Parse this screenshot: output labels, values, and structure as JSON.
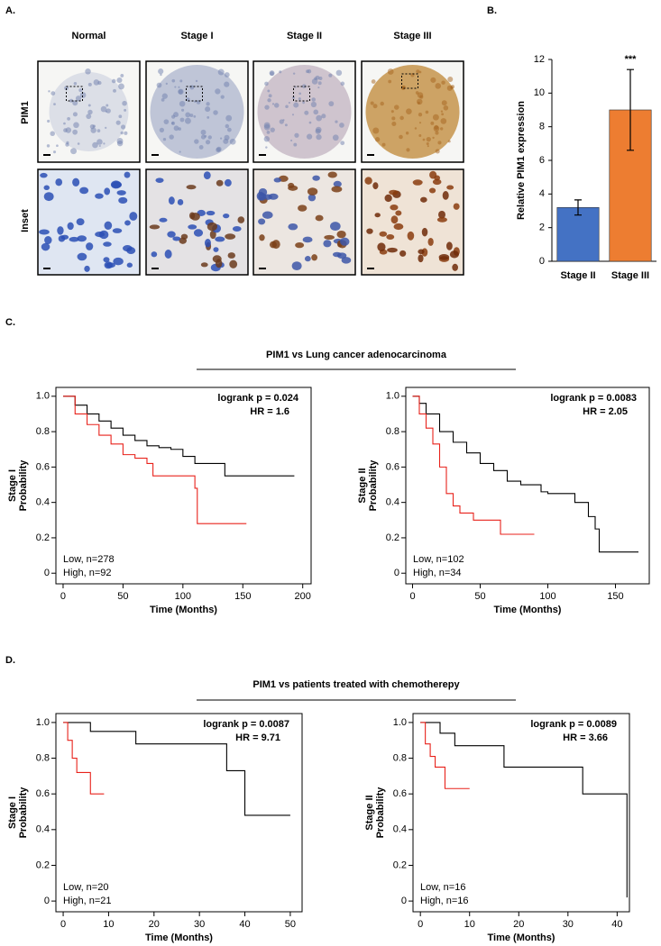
{
  "panel_a": {
    "label": "A.",
    "columns": [
      "Normal",
      "Stage I",
      "Stage II",
      "Stage III"
    ],
    "rows": [
      "PIM1",
      "Inset"
    ]
  },
  "group_titles": [
    "PIM1 vs Lung cancer adenocarcinoma",
    "PIM1 vs patients treated with chemotherepy"
  ],
  "group_labels": [
    "C.",
    "D."
  ],
  "chart_data": [
    {
      "type": "bar",
      "panel": "B.",
      "ylabel": "Relative PIM1 expression",
      "categories": [
        "Stage II",
        "Stage III"
      ],
      "values": [
        3.2,
        9.0
      ],
      "errors": [
        0.45,
        2.4
      ],
      "colors": [
        "#4472c4",
        "#ed7d31"
      ],
      "annotations": [
        null,
        "***"
      ],
      "ylim": [
        0,
        12
      ],
      "yticks": [
        0,
        2,
        4,
        6,
        8,
        10,
        12
      ]
    },
    {
      "type": "survival",
      "ylabel": [
        "Stage I",
        "Probability"
      ],
      "xlabel": "Time (Months)",
      "stats": [
        "logrank p = 0.024",
        "HR = 1.6"
      ],
      "legend": "lower left",
      "xlim": [
        -6,
        207
      ],
      "ylim": [
        -0.06,
        1.05
      ],
      "xticks": [
        0,
        50,
        100,
        150,
        200
      ],
      "yticks": [
        0,
        0.2,
        0.4,
        0.6,
        0.8,
        {
          "value": 1,
          "label": "1.0"
        }
      ],
      "series": [
        {
          "name": "Low, n=278",
          "color": "#000000",
          "x": [
            0,
            10,
            20,
            30,
            40,
            50,
            60,
            70,
            80,
            90,
            100,
            110,
            135,
            193
          ],
          "values": [
            1,
            0.95,
            0.9,
            0.86,
            0.82,
            0.78,
            0.75,
            0.72,
            0.71,
            0.7,
            0.66,
            0.62,
            0.55,
            0.55
          ]
        },
        {
          "name": "High, n=92",
          "color": "#e8221b",
          "x": [
            0,
            10,
            20,
            30,
            40,
            50,
            60,
            70,
            75,
            110,
            112,
            153
          ],
          "values": [
            1,
            0.9,
            0.84,
            0.78,
            0.73,
            0.67,
            0.65,
            0.62,
            0.55,
            0.48,
            0.28,
            0.28
          ]
        }
      ]
    },
    {
      "type": "survival",
      "ylabel": [
        "Stage II",
        "Probability"
      ],
      "xlabel": "Time (Months)",
      "stats": [
        "logrank p = 0.0083",
        "HR = 2.05"
      ],
      "legend": "lower left",
      "xlim": [
        -5,
        175
      ],
      "ylim": [
        -0.06,
        1.05
      ],
      "xticks": [
        0,
        50,
        100,
        150
      ],
      "yticks": [
        0,
        0.2,
        0.4,
        0.6,
        0.8,
        {
          "value": 1,
          "label": "1.0"
        }
      ],
      "series": [
        {
          "name": "Low, n=102",
          "color": "#000000",
          "x": [
            0,
            5,
            10,
            20,
            30,
            40,
            50,
            60,
            70,
            80,
            95,
            100,
            120,
            130,
            135,
            138,
            167
          ],
          "values": [
            1,
            0.96,
            0.9,
            0.8,
            0.74,
            0.68,
            0.62,
            0.58,
            0.52,
            0.5,
            0.46,
            0.45,
            0.4,
            0.32,
            0.25,
            0.12,
            0.12
          ]
        },
        {
          "name": "High, n=34",
          "color": "#e8221b",
          "x": [
            0,
            5,
            10,
            15,
            20,
            25,
            30,
            35,
            45,
            65,
            90
          ],
          "values": [
            1,
            0.9,
            0.82,
            0.73,
            0.6,
            0.45,
            0.38,
            0.34,
            0.3,
            0.22,
            0.22
          ]
        }
      ]
    },
    {
      "type": "survival",
      "ylabel": [
        "Stage I",
        "Probability"
      ],
      "xlabel": "Time (Months)",
      "stats": [
        "logrank p = 0.0087",
        "HR = 9.71"
      ],
      "legend": "lower left",
      "xlim": [
        -1.6,
        52.6
      ],
      "ylim": [
        -0.06,
        1.05
      ],
      "xticks": [
        0,
        10,
        20,
        30,
        40,
        50
      ],
      "yticks": [
        0,
        0.2,
        0.4,
        0.6,
        0.8,
        {
          "value": 1,
          "label": "1.0"
        }
      ],
      "series": [
        {
          "name": "Low, n=20",
          "color": "#000000",
          "x": [
            0,
            6,
            16,
            36,
            40,
            50
          ],
          "values": [
            1,
            0.95,
            0.88,
            0.73,
            0.48,
            0.48
          ]
        },
        {
          "name": "High, n=21",
          "color": "#e8221b",
          "x": [
            0,
            1,
            2,
            3,
            6,
            9
          ],
          "values": [
            1,
            0.9,
            0.8,
            0.72,
            0.6,
            0.6
          ]
        }
      ]
    },
    {
      "type": "survival",
      "ylabel": [
        "Stage II",
        "Probability"
      ],
      "xlabel": "Time (Months)",
      "stats": [
        "logrank p = 0.0089",
        "HR = 3.66"
      ],
      "legend": "lower left",
      "xlim": [
        -1.5,
        42.5
      ],
      "ylim": [
        -0.06,
        1.05
      ],
      "xticks": [
        0,
        10,
        20,
        30,
        40
      ],
      "yticks": [
        0,
        0.2,
        0.4,
        0.6,
        0.8,
        {
          "value": 1,
          "label": "1.0"
        }
      ],
      "series": [
        {
          "name": "Low, n=16",
          "color": "#000000",
          "x": [
            0,
            4,
            7,
            17,
            33,
            42
          ],
          "values": [
            1,
            0.94,
            0.87,
            0.75,
            0.6,
            0.02
          ]
        },
        {
          "name": "High, n=16",
          "color": "#e8221b",
          "x": [
            0,
            1,
            2,
            3,
            5,
            10
          ],
          "values": [
            1,
            0.88,
            0.81,
            0.75,
            0.63,
            0.63
          ]
        }
      ]
    }
  ]
}
